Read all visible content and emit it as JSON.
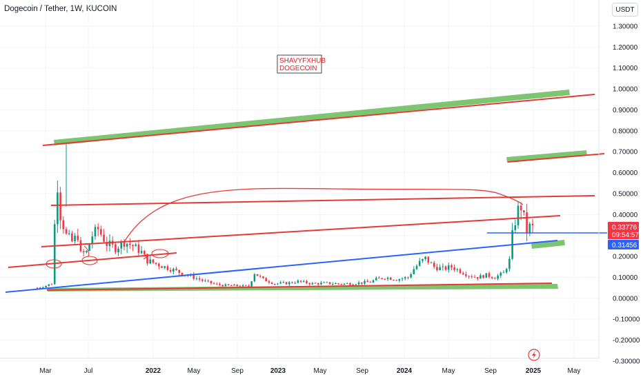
{
  "header": {
    "symbol_title": "Dogecoin / Tether, 1W, KUCOIN",
    "currency_button": "USDT"
  },
  "annotation": {
    "line1": "SHAVYFXHUB",
    "line2": "DOGECOIN"
  },
  "price_labels": {
    "last_price": "0.33776",
    "countdown": "09:54:57",
    "line_price": "0.31456"
  },
  "colors": {
    "up": "#089981",
    "down": "#f23645",
    "red_line": "#e53935",
    "blue_line": "#2962ff",
    "zone": "#6fbf60",
    "last_price_bg": "#f23645",
    "line_price_bg": "#2962ff"
  },
  "icons": [
    "lightning-icon"
  ],
  "chart_data": {
    "type": "candlestick",
    "title": "Dogecoin / Tether, 1W, KUCOIN",
    "y_ticks": [
      "1.30000",
      "1.20000",
      "1.10000",
      "1.00000",
      "0.90000",
      "0.80000",
      "0.70000",
      "0.60000",
      "0.50000",
      "0.40000",
      "0.30000",
      "0.20000",
      "0.10000",
      "0.00000",
      "-0.10000",
      "-0.20000",
      "-0.30000"
    ],
    "ylim": [
      -0.3,
      1.33
    ],
    "x_ticks": [
      {
        "label": "Mar",
        "bold": false
      },
      {
        "label": "Jul",
        "bold": false
      },
      {
        "label": "2022",
        "bold": true
      },
      {
        "label": "May",
        "bold": false
      },
      {
        "label": "Sep",
        "bold": false
      },
      {
        "label": "2023",
        "bold": true
      },
      {
        "label": "May",
        "bold": false
      },
      {
        "label": "Sep",
        "bold": false
      },
      {
        "label": "2024",
        "bold": true
      },
      {
        "label": "May",
        "bold": false
      },
      {
        "label": "Sep",
        "bold": false
      },
      {
        "label": "2025",
        "bold": true
      },
      {
        "label": "May",
        "bold": false
      }
    ],
    "last_price": 0.33776,
    "horizontal_line_price": 0.31456,
    "ohlc_keypoints": [
      [
        0,
        0.05
      ],
      [
        3,
        0.06
      ],
      [
        5,
        0.07
      ],
      [
        6,
        0.35
      ],
      [
        7,
        0.55
      ],
      [
        8,
        0.4
      ],
      [
        10,
        0.3
      ],
      [
        12,
        0.27
      ],
      [
        14,
        0.3
      ],
      [
        15,
        0.21
      ],
      [
        17,
        0.22
      ],
      [
        19,
        0.3
      ],
      [
        21,
        0.33
      ],
      [
        24,
        0.26
      ],
      [
        27,
        0.24
      ],
      [
        30,
        0.27
      ],
      [
        33,
        0.25
      ],
      [
        36,
        0.22
      ],
      [
        38,
        0.18
      ],
      [
        42,
        0.16
      ],
      [
        46,
        0.14
      ],
      [
        50,
        0.12
      ],
      [
        54,
        0.1
      ],
      [
        58,
        0.08
      ],
      [
        62,
        0.065
      ],
      [
        66,
        0.06
      ],
      [
        70,
        0.06
      ],
      [
        73,
        0.055
      ],
      [
        75,
        0.12
      ],
      [
        78,
        0.09
      ],
      [
        82,
        0.07
      ],
      [
        86,
        0.072
      ],
      [
        90,
        0.08
      ],
      [
        95,
        0.07
      ],
      [
        100,
        0.072
      ],
      [
        105,
        0.068
      ],
      [
        110,
        0.072
      ],
      [
        115,
        0.078
      ],
      [
        117,
        0.09
      ],
      [
        120,
        0.1
      ],
      [
        124,
        0.09
      ],
      [
        128,
        0.1
      ],
      [
        130,
        0.14
      ],
      [
        132,
        0.17
      ],
      [
        134,
        0.19
      ],
      [
        137,
        0.15
      ],
      [
        140,
        0.14
      ],
      [
        143,
        0.15
      ],
      [
        146,
        0.13
      ],
      [
        149,
        0.11
      ],
      [
        152,
        0.1
      ],
      [
        155,
        0.11
      ],
      [
        158,
        0.1
      ],
      [
        161,
        0.12
      ],
      [
        163,
        0.18
      ],
      [
        164,
        0.3
      ],
      [
        165,
        0.37
      ],
      [
        166,
        0.42
      ],
      [
        167,
        0.44
      ],
      [
        168,
        0.38
      ],
      [
        169,
        0.32
      ],
      [
        170,
        0.34
      ],
      [
        171,
        0.336
      ]
    ],
    "drawings": {
      "red_channel_lines": 5,
      "blue_trendline": 1,
      "green_zones": 5,
      "curve": 1
    }
  }
}
